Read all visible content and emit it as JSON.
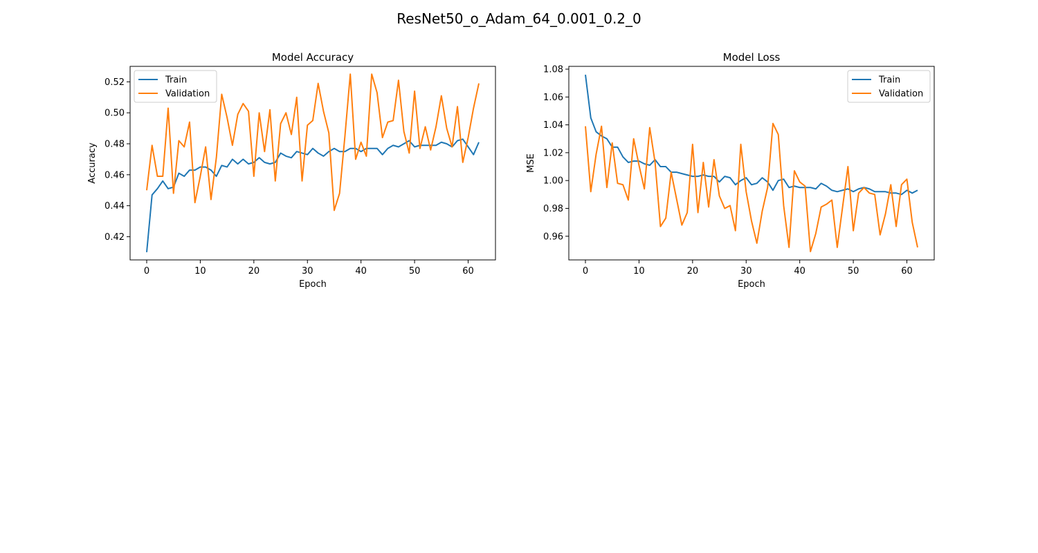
{
  "figure": {
    "title": "ResNet50_o_Adam_64_0.001_0.2_0"
  },
  "colors": {
    "train": "#1f77b4",
    "validation": "#ff7f0e"
  },
  "chart_data": [
    {
      "type": "line",
      "title": "Model Accuracy",
      "xlabel": "Epoch",
      "ylabel": "Accuracy",
      "xlim": [
        -3.1,
        65.1
      ],
      "ylim": [
        0.405,
        0.53
      ],
      "xticks": [
        0,
        10,
        20,
        30,
        40,
        50,
        60
      ],
      "yticks": [
        0.42,
        0.44,
        0.46,
        0.48,
        0.5,
        0.52
      ],
      "ytick_labels": [
        "0.42",
        "0.44",
        "0.46",
        "0.48",
        "0.50",
        "0.52"
      ],
      "legend": "upper left",
      "grid": false,
      "series": [
        {
          "name": "Train",
          "values": [
            0.41,
            0.447,
            0.451,
            0.456,
            0.451,
            0.452,
            0.461,
            0.459,
            0.463,
            0.463,
            0.465,
            0.465,
            0.463,
            0.459,
            0.466,
            0.465,
            0.47,
            0.467,
            0.47,
            0.467,
            0.468,
            0.471,
            0.468,
            0.467,
            0.468,
            0.474,
            0.472,
            0.471,
            0.475,
            0.474,
            0.473,
            0.477,
            0.474,
            0.472,
            0.475,
            0.477,
            0.475,
            0.475,
            0.477,
            0.477,
            0.475,
            0.477,
            0.477,
            0.477,
            0.473,
            0.477,
            0.479,
            0.478,
            0.48,
            0.482,
            0.478,
            0.479,
            0.479,
            0.479,
            0.479,
            0.481,
            0.48,
            0.478,
            0.482,
            0.483,
            0.478,
            0.473,
            0.481
          ]
        },
        {
          "name": "Validation",
          "values": [
            0.45,
            0.479,
            0.459,
            0.459,
            0.503,
            0.448,
            0.482,
            0.478,
            0.494,
            0.442,
            0.459,
            0.478,
            0.444,
            0.471,
            0.512,
            0.497,
            0.479,
            0.499,
            0.506,
            0.501,
            0.459,
            0.5,
            0.475,
            0.502,
            0.456,
            0.493,
            0.5,
            0.486,
            0.51,
            0.456,
            0.492,
            0.495,
            0.519,
            0.501,
            0.487,
            0.437,
            0.448,
            0.485,
            0.525,
            0.47,
            0.481,
            0.472,
            0.525,
            0.513,
            0.484,
            0.494,
            0.495,
            0.521,
            0.488,
            0.474,
            0.514,
            0.477,
            0.491,
            0.476,
            0.491,
            0.511,
            0.49,
            0.478,
            0.504,
            0.468,
            0.484,
            0.503,
            0.519
          ]
        }
      ]
    },
    {
      "type": "line",
      "title": "Model Loss",
      "xlabel": "Epoch",
      "ylabel": "MSE",
      "xlim": [
        -3.1,
        65.1
      ],
      "ylim": [
        0.943,
        1.082
      ],
      "xticks": [
        0,
        10,
        20,
        30,
        40,
        50,
        60
      ],
      "yticks": [
        0.96,
        0.98,
        1.0,
        1.02,
        1.04,
        1.06,
        1.08
      ],
      "ytick_labels": [
        "0.96",
        "0.98",
        "1.00",
        "1.02",
        "1.04",
        "1.06",
        "1.08"
      ],
      "legend": "upper right",
      "grid": false,
      "series": [
        {
          "name": "Train",
          "values": [
            1.076,
            1.045,
            1.035,
            1.032,
            1.03,
            1.024,
            1.024,
            1.017,
            1.013,
            1.014,
            1.014,
            1.012,
            1.011,
            1.015,
            1.01,
            1.01,
            1.006,
            1.006,
            1.005,
            1.004,
            1.003,
            1.003,
            1.004,
            1.003,
            1.003,
            0.999,
            1.003,
            1.002,
            0.997,
            1.0,
            1.002,
            0.997,
            0.998,
            1.002,
            0.999,
            0.993,
            1.0,
            1.001,
            0.995,
            0.996,
            0.995,
            0.995,
            0.995,
            0.994,
            0.998,
            0.996,
            0.993,
            0.992,
            0.993,
            0.994,
            0.992,
            0.994,
            0.995,
            0.994,
            0.992,
            0.992,
            0.992,
            0.991,
            0.991,
            0.99,
            0.993,
            0.991,
            0.993
          ]
        },
        {
          "name": "Validation",
          "values": [
            1.039,
            0.992,
            1.019,
            1.039,
            0.995,
            1.027,
            0.998,
            0.997,
            0.986,
            1.03,
            1.011,
            0.994,
            1.038,
            1.013,
            0.967,
            0.973,
            1.006,
            0.987,
            0.968,
            0.977,
            1.026,
            0.977,
            1.013,
            0.981,
            1.015,
            0.989,
            0.98,
            0.982,
            0.964,
            1.026,
            0.992,
            0.971,
            0.955,
            0.978,
            0.995,
            1.041,
            1.033,
            0.982,
            0.952,
            1.007,
            0.999,
            0.996,
            0.949,
            0.962,
            0.981,
            0.983,
            0.986,
            0.952,
            0.981,
            1.01,
            0.964,
            0.991,
            0.995,
            0.991,
            0.99,
            0.961,
            0.976,
            0.997,
            0.967,
            0.997,
            1.001,
            0.97,
            0.952
          ]
        }
      ]
    }
  ]
}
